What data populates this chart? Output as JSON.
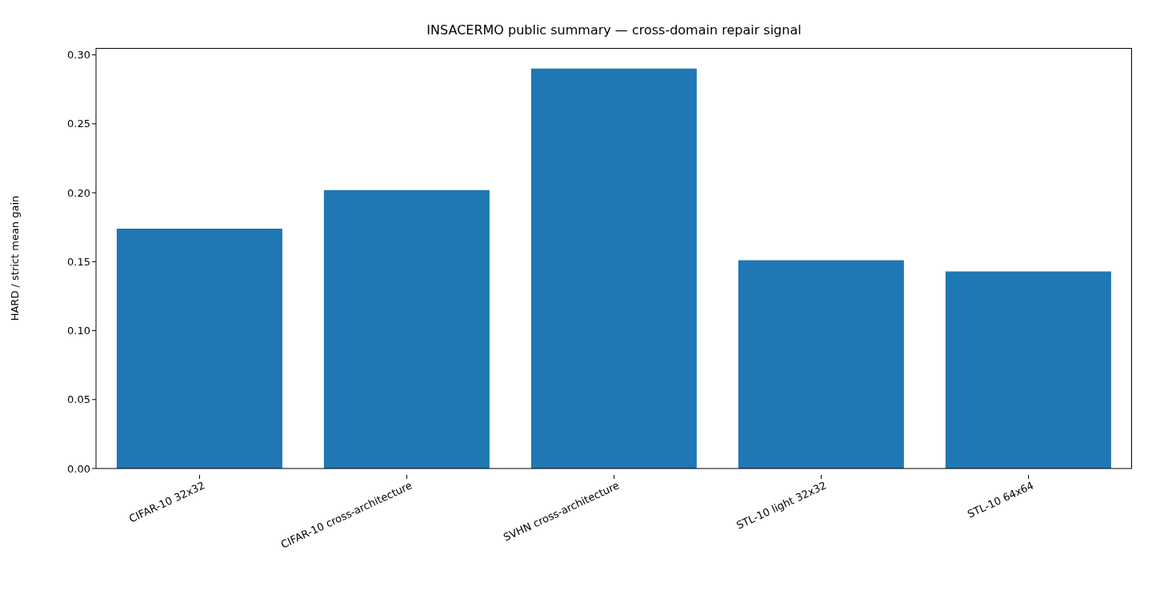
{
  "chart_data": {
    "type": "bar",
    "title": "INSACERMO public summary — cross-domain repair signal",
    "ylabel": "HARD / strict mean gain",
    "categories": [
      "CIFAR-10 32x32",
      "CIFAR-10 cross-architecture",
      "SVHN cross-architecture",
      "STL-10 light 32x32",
      "STL-10 64x64"
    ],
    "values": [
      0.174,
      0.202,
      0.29,
      0.151,
      0.143
    ],
    "color": "#1f77b4",
    "ylim": [
      0,
      0.305
    ],
    "yticks": [
      {
        "value": 0,
        "label": "0.00"
      },
      {
        "value": 0.05,
        "label": "0.05"
      },
      {
        "value": 0.1,
        "label": "0.10"
      },
      {
        "value": 0.15,
        "label": "0.15"
      },
      {
        "value": 0.2,
        "label": "0.20"
      },
      {
        "value": 0.25,
        "label": "0.25"
      },
      {
        "value": 0.3,
        "label": "0.30"
      }
    ],
    "grid": false
  }
}
